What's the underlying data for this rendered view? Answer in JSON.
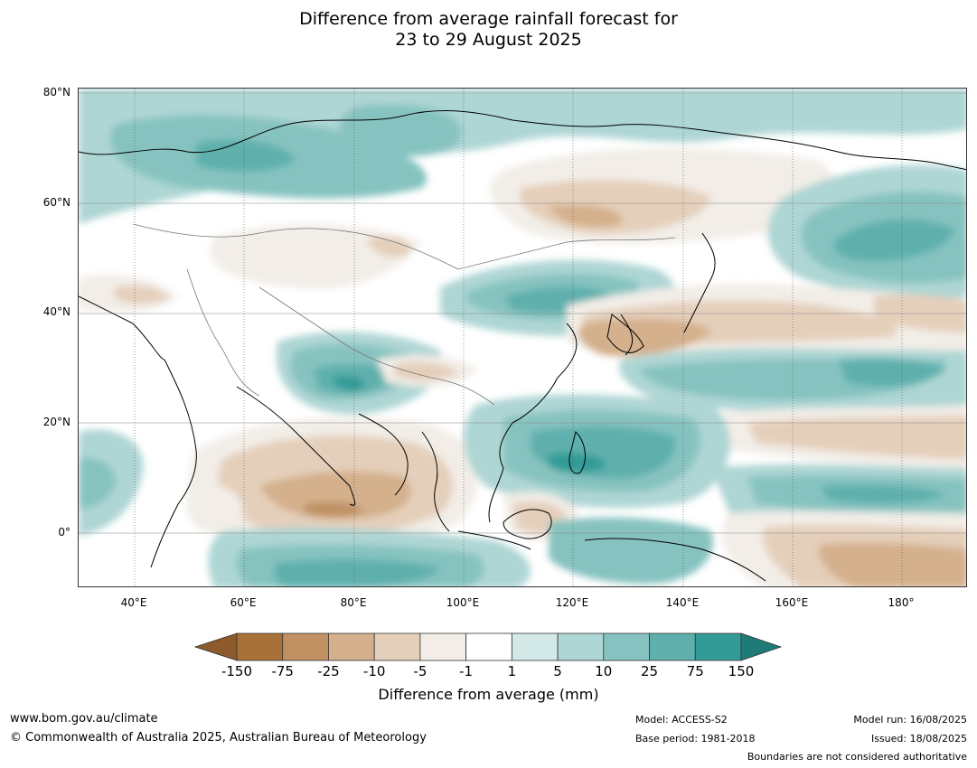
{
  "title": {
    "line1": "Difference from average rainfall forecast for",
    "line2": "23 to 29 August 2025"
  },
  "map": {
    "lat_labels": [
      "80°N",
      "60°N",
      "40°N",
      "20°N",
      "0°"
    ],
    "lon_labels": [
      "40°E",
      "60°E",
      "80°E",
      "100°E",
      "120°E",
      "140°E",
      "160°E",
      "180°"
    ],
    "dry_colors": [
      "#a9713a",
      "#bf9163",
      "#d4b08c",
      "#e4cfba",
      "#f2ede7"
    ],
    "neutral_color": "#ffffff",
    "wet_colors": [
      "#d3e9e7",
      "#aed6d4",
      "#86c3c0",
      "#5fb0ad",
      "#339b97",
      "#1f7b78"
    ]
  },
  "colorbar": {
    "ticks": [
      "-150",
      "-75",
      "-25",
      "-10",
      "-5",
      "-1",
      "1",
      "5",
      "10",
      "25",
      "75",
      "150"
    ],
    "colors": [
      "#a9713a",
      "#bf9163",
      "#d4b08c",
      "#e4cfba",
      "#f2ede7",
      "#ffffff",
      "#d3e9e7",
      "#aed6d4",
      "#86c3c0",
      "#5fb0ad",
      "#339b97"
    ],
    "low_extend_color": "#8c5a2b",
    "high_extend_color": "#207a76",
    "label": "Difference from average (mm)"
  },
  "footer": {
    "website": "www.bom.gov.au/climate",
    "copyright": "© Commonwealth of Australia 2025, Australian Bureau of Meteorology",
    "model": "Model: ACCESS-S2",
    "base_period": "Base period: 1981-2018",
    "model_run": "Model run: 16/08/2025",
    "issued": "Issued: 18/08/2025",
    "disclaimer": "Boundaries are not considered authoritative"
  }
}
